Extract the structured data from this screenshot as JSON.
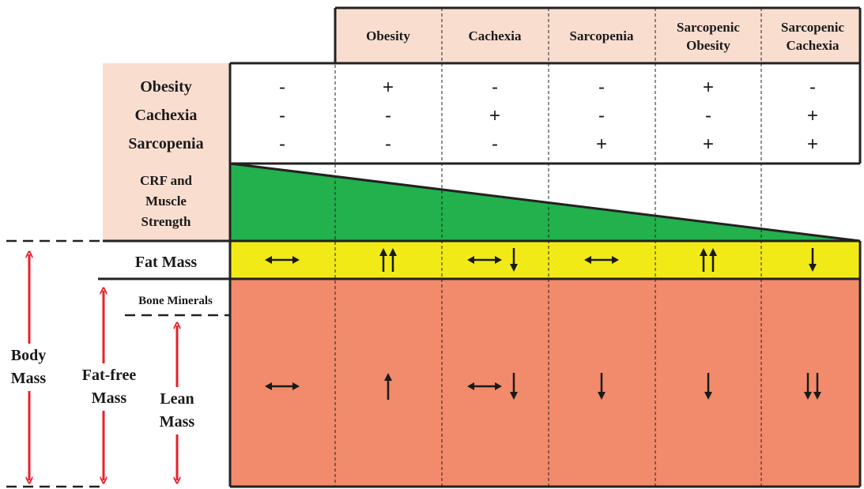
{
  "columns": [
    "",
    "Obesity",
    "Cachexia",
    "Sarcopenia",
    "Sarcopenic Obesity",
    "Sarcopenic Cachexia"
  ],
  "conditions": [
    {
      "label": "Obesity",
      "values": [
        "-",
        "+",
        "-",
        "-",
        "+",
        "-"
      ]
    },
    {
      "label": "Cachexia",
      "values": [
        "-",
        "-",
        "+",
        "-",
        "-",
        "+"
      ]
    },
    {
      "label": "Sarcopenia",
      "values": [
        "-",
        "-",
        "-",
        "+",
        "+",
        "+"
      ]
    }
  ],
  "crf_label": "CRF and Muscle Strength",
  "crf_level": {
    "start": 1.0,
    "end": 0.0
  },
  "fat_mass": {
    "label": "Fat Mass",
    "changes": [
      "unchanged",
      "increased-strongly",
      "unchanged-or-decreased",
      "unchanged",
      "increased-strongly",
      "decreased"
    ]
  },
  "lean_mass": {
    "changes": [
      "unchanged",
      "increased",
      "unchanged-or-decreased",
      "decreased",
      "decreased",
      "decreased-strongly"
    ]
  },
  "side_labels": {
    "bone_minerals": "Bone Minerals",
    "body_mass": "Body Mass",
    "fat_free_mass": "Fat-free Mass",
    "lean_mass": "Lean Mass"
  },
  "colors": {
    "header_fill": "#f9ded0",
    "crf_green": "#22b14c",
    "fat_yellow": "#f2ea17",
    "lean_salmon": "#f28b6b",
    "arrow_red": "#e8202a"
  }
}
